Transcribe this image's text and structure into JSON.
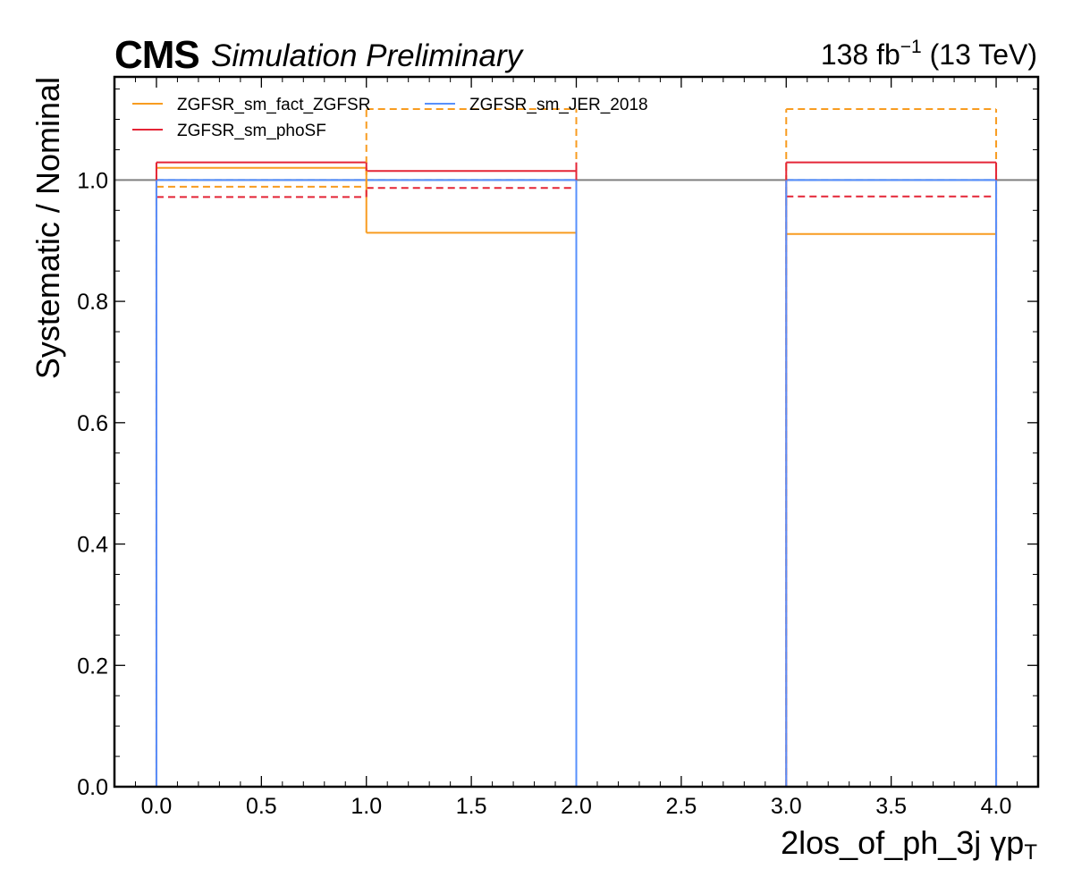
{
  "header": {
    "experiment": "CMS",
    "status": "Simulation Preliminary",
    "lumi_value": "138 fb",
    "lumi_exp": "−1",
    "energy": " (13 TeV)"
  },
  "chart_data": {
    "type": "line",
    "drawstyle": "steps",
    "title": "",
    "xlabel": "2los_of_ph_3j   γp",
    "xlabel_sub": "T",
    "ylabel": "Systematic / Nominal",
    "xlim": [
      -0.2,
      4.2
    ],
    "ylim": [
      0.0,
      1.17
    ],
    "xticks": [
      0.0,
      0.5,
      1.0,
      1.5,
      2.0,
      2.5,
      3.0,
      3.5,
      4.0
    ],
    "xtick_labels": [
      "0.0",
      "0.5",
      "1.0",
      "1.5",
      "2.0",
      "2.5",
      "3.0",
      "3.5",
      "4.0"
    ],
    "yticks": [
      0.0,
      0.2,
      0.4,
      0.6,
      0.8,
      1.0
    ],
    "ytick_labels": [
      "0.0",
      "0.2",
      "0.4",
      "0.6",
      "0.8",
      "1.0"
    ],
    "reference_line": 1.0,
    "grid": false,
    "legend": {
      "location": "top-left",
      "columns": 2,
      "entries": [
        "ZGFSR_sm_fact_ZGFSR",
        "ZGFSR_sm_phoSF",
        "ZGFSR_sm_JER_2018"
      ]
    },
    "bins": [
      [
        0,
        1
      ],
      [
        1,
        2
      ],
      [
        3,
        4
      ]
    ],
    "series": [
      {
        "name": "ZGFSR_sm_fact_ZGFSR",
        "variation": "up",
        "color": "#f89c20",
        "dash": "solid",
        "values": [
          1.02,
          0.913,
          0.911
        ]
      },
      {
        "name": "ZGFSR_sm_fact_ZGFSR",
        "variation": "down",
        "color": "#f89c20",
        "dash": "dashed",
        "values": [
          0.989,
          1.117,
          1.117
        ]
      },
      {
        "name": "ZGFSR_sm_phoSF",
        "variation": "up",
        "color": "#e42536",
        "dash": "solid",
        "values": [
          1.029,
          1.015,
          1.029
        ]
      },
      {
        "name": "ZGFSR_sm_phoSF",
        "variation": "down",
        "color": "#e42536",
        "dash": "dashed",
        "values": [
          0.972,
          0.987,
          0.973
        ]
      },
      {
        "name": "ZGFSR_sm_JER_2018",
        "variation": "up",
        "color": "#5790fc",
        "dash": "solid",
        "values": [
          1.0,
          1.0,
          1.0
        ]
      },
      {
        "name": "ZGFSR_sm_JER_2018",
        "variation": "down",
        "color": "#5790fc",
        "dash": "dashed",
        "values": [
          1.0,
          1.0,
          1.0
        ]
      }
    ],
    "colors": {
      "fact": "#f89c20",
      "phoSF": "#e42536",
      "JER": "#5790fc",
      "reference": "#808080"
    }
  }
}
